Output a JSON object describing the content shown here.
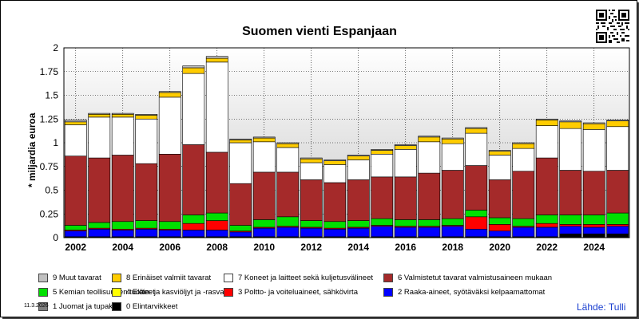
{
  "title": "Suomen vienti Espanjaan",
  "ylabel": "* miljardia euroa",
  "date_stamp": "11.3.2026",
  "source": "Lähde: Tulli",
  "qr_icon": "qr-code-icon",
  "chart_data": {
    "type": "bar",
    "stacked": true,
    "title": "Suomen vienti Espanjaan",
    "ylabel": "* miljardia euroa",
    "xlabel": "",
    "ylim": [
      0,
      2
    ],
    "yticks": [
      "0",
      "0.25",
      "0.5",
      "0.75",
      "1",
      "1.25",
      "1.5",
      "1.75",
      "2"
    ],
    "ytick_values": [
      0,
      0.25,
      0.5,
      0.75,
      1,
      1.25,
      1.5,
      1.75,
      2
    ],
    "xtick_labels": [
      "2002",
      "2004",
      "2006",
      "2008",
      "2010",
      "2012",
      "2014",
      "2016",
      "2018",
      "2020",
      "2022",
      "2024"
    ],
    "categories": [
      "2002",
      "2003",
      "2004",
      "2005",
      "2006",
      "2007",
      "2008",
      "2009",
      "2010",
      "2011",
      "2012",
      "2013",
      "2014",
      "2015",
      "2016",
      "2017",
      "2018",
      "2019",
      "2020",
      "2021",
      "2022",
      "2023",
      "2024",
      "2025"
    ],
    "grid": true,
    "series": [
      {
        "name": "0 Elintarvikkeet",
        "color": "#000000",
        "values": [
          0.01,
          0.01,
          0.01,
          0.01,
          0.01,
          0.01,
          0.01,
          0.01,
          0.01,
          0.01,
          0.01,
          0.01,
          0.01,
          0.01,
          0.01,
          0.01,
          0.01,
          0.01,
          0.01,
          0.01,
          0.01,
          0.04,
          0.04,
          0.04
        ]
      },
      {
        "name": "1 Juomat ja tupakka",
        "color": "#808080",
        "values": [
          0,
          0,
          0,
          0,
          0,
          0,
          0,
          0,
          0,
          0,
          0,
          0,
          0,
          0,
          0,
          0,
          0,
          0,
          0,
          0,
          0,
          0,
          0,
          0
        ]
      },
      {
        "name": "2 Raaka-aineet, syötäväksi kelpaamattomat",
        "color": "#0000ff",
        "values": [
          0.06,
          0.08,
          0.07,
          0.08,
          0.07,
          0.07,
          0.07,
          0.05,
          0.09,
          0.1,
          0.09,
          0.08,
          0.09,
          0.11,
          0.1,
          0.1,
          0.11,
          0.08,
          0.06,
          0.1,
          0.1,
          0.08,
          0.07,
          0.08
        ]
      },
      {
        "name": "3 Poltto- ja voiteluaineet, sähkövirta",
        "color": "#ff0000",
        "values": [
          0.01,
          0.01,
          0.01,
          0.01,
          0.01,
          0.07,
          0.1,
          0.01,
          0.01,
          0.01,
          0.01,
          0.01,
          0.01,
          0.01,
          0.01,
          0.01,
          0.01,
          0.13,
          0.07,
          0.01,
          0.04,
          0.02,
          0.03,
          0.02
        ]
      },
      {
        "name": "4 Eläin- ja kasviöljyt ja -rasvat",
        "color": "#ffff00",
        "values": [
          0,
          0,
          0,
          0,
          0,
          0,
          0,
          0,
          0,
          0,
          0,
          0,
          0,
          0,
          0,
          0,
          0,
          0,
          0,
          0,
          0,
          0,
          0,
          0
        ]
      },
      {
        "name": "5 Kemian teollisuuden tuotteet",
        "color": "#00e000",
        "values": [
          0.05,
          0.06,
          0.08,
          0.08,
          0.08,
          0.09,
          0.08,
          0.06,
          0.08,
          0.1,
          0.07,
          0.07,
          0.07,
          0.07,
          0.07,
          0.07,
          0.07,
          0.07,
          0.07,
          0.08,
          0.09,
          0.1,
          0.1,
          0.12
        ]
      },
      {
        "name": "6 Valmistetut tavarat valmistusaineen mukaan",
        "color": "#a52a2a",
        "values": [
          0.73,
          0.68,
          0.7,
          0.6,
          0.71,
          0.74,
          0.64,
          0.44,
          0.5,
          0.47,
          0.43,
          0.41,
          0.43,
          0.44,
          0.45,
          0.49,
          0.51,
          0.47,
          0.4,
          0.5,
          0.6,
          0.47,
          0.46,
          0.45
        ]
      },
      {
        "name": "7 Koneet ja laitteet sekä kuljetusvälineet",
        "color": "#ffffff",
        "values": [
          0.33,
          0.43,
          0.4,
          0.47,
          0.6,
          0.75,
          0.95,
          0.43,
          0.32,
          0.26,
          0.18,
          0.19,
          0.21,
          0.24,
          0.29,
          0.33,
          0.28,
          0.34,
          0.26,
          0.24,
          0.34,
          0.44,
          0.44,
          0.46
        ]
      },
      {
        "name": "8 Erinäiset valmiit tavarat",
        "color": "#ffcc00",
        "values": [
          0.03,
          0.03,
          0.03,
          0.04,
          0.05,
          0.06,
          0.04,
          0.03,
          0.04,
          0.04,
          0.04,
          0.04,
          0.04,
          0.04,
          0.04,
          0.05,
          0.05,
          0.05,
          0.04,
          0.05,
          0.06,
          0.07,
          0.06,
          0.06
        ]
      },
      {
        "name": "9 Muut tavarat",
        "color": "#c0c0c0",
        "values": [
          0.02,
          0.01,
          0.01,
          0.01,
          0.01,
          0.02,
          0.02,
          0.01,
          0.01,
          0.01,
          0.01,
          0.01,
          0.01,
          0.01,
          0.01,
          0.01,
          0.01,
          0.01,
          0.01,
          0.01,
          0.01,
          0.01,
          0.01,
          0.01
        ]
      }
    ]
  },
  "legend": {
    "items": [
      {
        "label": "9 Muut tavarat",
        "color": "#c0c0c0"
      },
      {
        "label": "8 Erinäiset valmiit tavarat",
        "color": "#ffcc00"
      },
      {
        "label": "7 Koneet ja laitteet sekä kuljetusvälineet",
        "color": "#ffffff"
      },
      {
        "label": "6 Valmistetut tavarat valmistusaineen mukaan",
        "color": "#a52a2a"
      },
      {
        "label": "5 Kemian teollisuuden tuotteet",
        "color": "#00e000"
      },
      {
        "label": "4 Eläin- ja kasviöljyt ja -rasvat",
        "color": "#ffff00"
      },
      {
        "label": "3 Poltto- ja voiteluaineet, sähkövirta",
        "color": "#ff0000"
      },
      {
        "label": "2 Raaka-aineet, syötäväksi kelpaamattomat",
        "color": "#0000ff"
      },
      {
        "label": "1 Juomat ja tupakka",
        "color": "#808080"
      },
      {
        "label": "0 Elintarvikkeet",
        "color": "#000000"
      }
    ]
  }
}
